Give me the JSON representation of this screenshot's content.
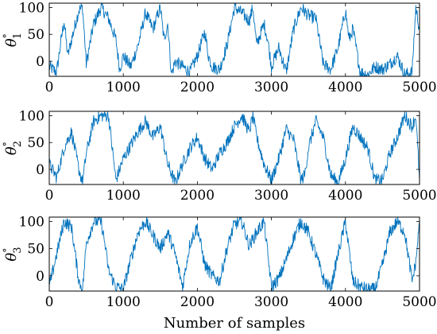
{
  "colors": {
    "series": "#0072BD",
    "axes": "#000000",
    "background": "#ffffff"
  },
  "chart_data": [
    {
      "type": "line",
      "ylabel": {
        "base": "θ",
        "sup": "°",
        "sub": "1"
      },
      "xlabel": "",
      "xlim": [
        0,
        5000
      ],
      "ylim": [
        -28,
        108
      ],
      "xticks": [
        0,
        1000,
        2000,
        3000,
        4000,
        5000
      ],
      "yticks": [
        0,
        50,
        100
      ],
      "grid": false,
      "series": [
        {
          "values_description_free": true,
          "x": [
            0,
            100,
            150,
            200,
            250,
            300,
            400,
            450,
            500,
            600,
            700,
            800,
            900,
            950,
            1000,
            1100,
            1200,
            1300,
            1400,
            1500,
            1550,
            1600,
            1650,
            1700,
            1800,
            1900,
            2000,
            2100,
            2150,
            2200,
            2300,
            2400,
            2500,
            2600,
            2700,
            2750,
            2800,
            2900,
            2950,
            3000,
            3100,
            3200,
            3300,
            3400,
            3500,
            3600,
            3700,
            3800,
            3900,
            4000,
            4050,
            4100,
            4200,
            4300,
            4400,
            4500,
            4600,
            4700,
            4800,
            4900,
            4950,
            5000
          ],
          "y": [
            -10,
            -20,
            30,
            75,
            10,
            40,
            95,
            100,
            -5,
            70,
            100,
            80,
            40,
            -15,
            10,
            -10,
            30,
            90,
            60,
            100,
            40,
            70,
            -25,
            0,
            -10,
            -20,
            10,
            55,
            10,
            -10,
            -15,
            30,
            100,
            90,
            75,
            100,
            30,
            70,
            40,
            -10,
            25,
            -20,
            60,
            100,
            85,
            80,
            -5,
            -15,
            25,
            95,
            40,
            60,
            -20,
            -25,
            -10,
            -15,
            -5,
            10,
            -25,
            -20,
            100,
            60
          ]
        }
      ]
    },
    {
      "type": "line",
      "ylabel": {
        "base": "θ",
        "sup": "°",
        "sub": "2"
      },
      "xlabel": "",
      "xlim": [
        0,
        5000
      ],
      "ylim": [
        -28,
        108
      ],
      "xticks": [
        0,
        1000,
        2000,
        3000,
        4000,
        5000
      ],
      "yticks": [
        0,
        50,
        100
      ],
      "grid": false,
      "series": [
        {
          "x": [
            0,
            100,
            200,
            300,
            400,
            450,
            500,
            600,
            700,
            800,
            850,
            900,
            1000,
            1100,
            1200,
            1300,
            1400,
            1500,
            1600,
            1700,
            1800,
            1900,
            2000,
            2100,
            2200,
            2300,
            2400,
            2500,
            2600,
            2700,
            2750,
            2800,
            2900,
            3000,
            3100,
            3200,
            3300,
            3400,
            3450,
            3500,
            3600,
            3700,
            3800,
            3900,
            4000,
            4100,
            4200,
            4300,
            4400,
            4500,
            4600,
            4700,
            4800,
            4900,
            4950,
            5000
          ],
          "y": [
            10,
            -15,
            40,
            70,
            0,
            -25,
            30,
            90,
            100,
            100,
            40,
            -20,
            20,
            45,
            70,
            90,
            60,
            80,
            10,
            -25,
            10,
            40,
            60,
            20,
            0,
            30,
            50,
            80,
            100,
            70,
            100,
            60,
            10,
            -20,
            20,
            75,
            55,
            -20,
            -10,
            40,
            90,
            60,
            -10,
            -25,
            20,
            80,
            60,
            40,
            -20,
            -20,
            30,
            60,
            100,
            80,
            100,
            -20
          ]
        }
      ]
    },
    {
      "type": "line",
      "ylabel": {
        "base": "θ",
        "sup": "°",
        "sub": "3"
      },
      "xlabel": "Number of samples",
      "xlim": [
        0,
        5000
      ],
      "ylim": [
        -28,
        108
      ],
      "xticks": [
        0,
        1000,
        2000,
        3000,
        4000,
        5000
      ],
      "yticks": [
        0,
        50,
        100
      ],
      "grid": false,
      "series": [
        {
          "x": [
            0,
            100,
            200,
            300,
            400,
            450,
            500,
            600,
            700,
            750,
            800,
            900,
            1000,
            1100,
            1200,
            1300,
            1400,
            1500,
            1600,
            1700,
            1800,
            1900,
            2000,
            2100,
            2200,
            2300,
            2400,
            2500,
            2600,
            2700,
            2800,
            2900,
            3000,
            3100,
            3200,
            3300,
            3400,
            3500,
            3600,
            3700,
            3800,
            3900,
            4000,
            4100,
            4200,
            4300,
            4400,
            4500,
            4600,
            4700,
            4800,
            4900,
            4950,
            5000
          ],
          "y": [
            -20,
            40,
            100,
            90,
            -10,
            -25,
            60,
            100,
            100,
            60,
            10,
            -20,
            -25,
            30,
            80,
            100,
            75,
            50,
            80,
            40,
            -20,
            60,
            90,
            20,
            0,
            -10,
            50,
            95,
            100,
            55,
            80,
            100,
            -20,
            -5,
            30,
            70,
            100,
            80,
            40,
            -5,
            -25,
            40,
            100,
            -10,
            -20,
            -25,
            -25,
            20,
            80,
            100,
            80,
            -10,
            25,
            100
          ]
        }
      ]
    }
  ]
}
